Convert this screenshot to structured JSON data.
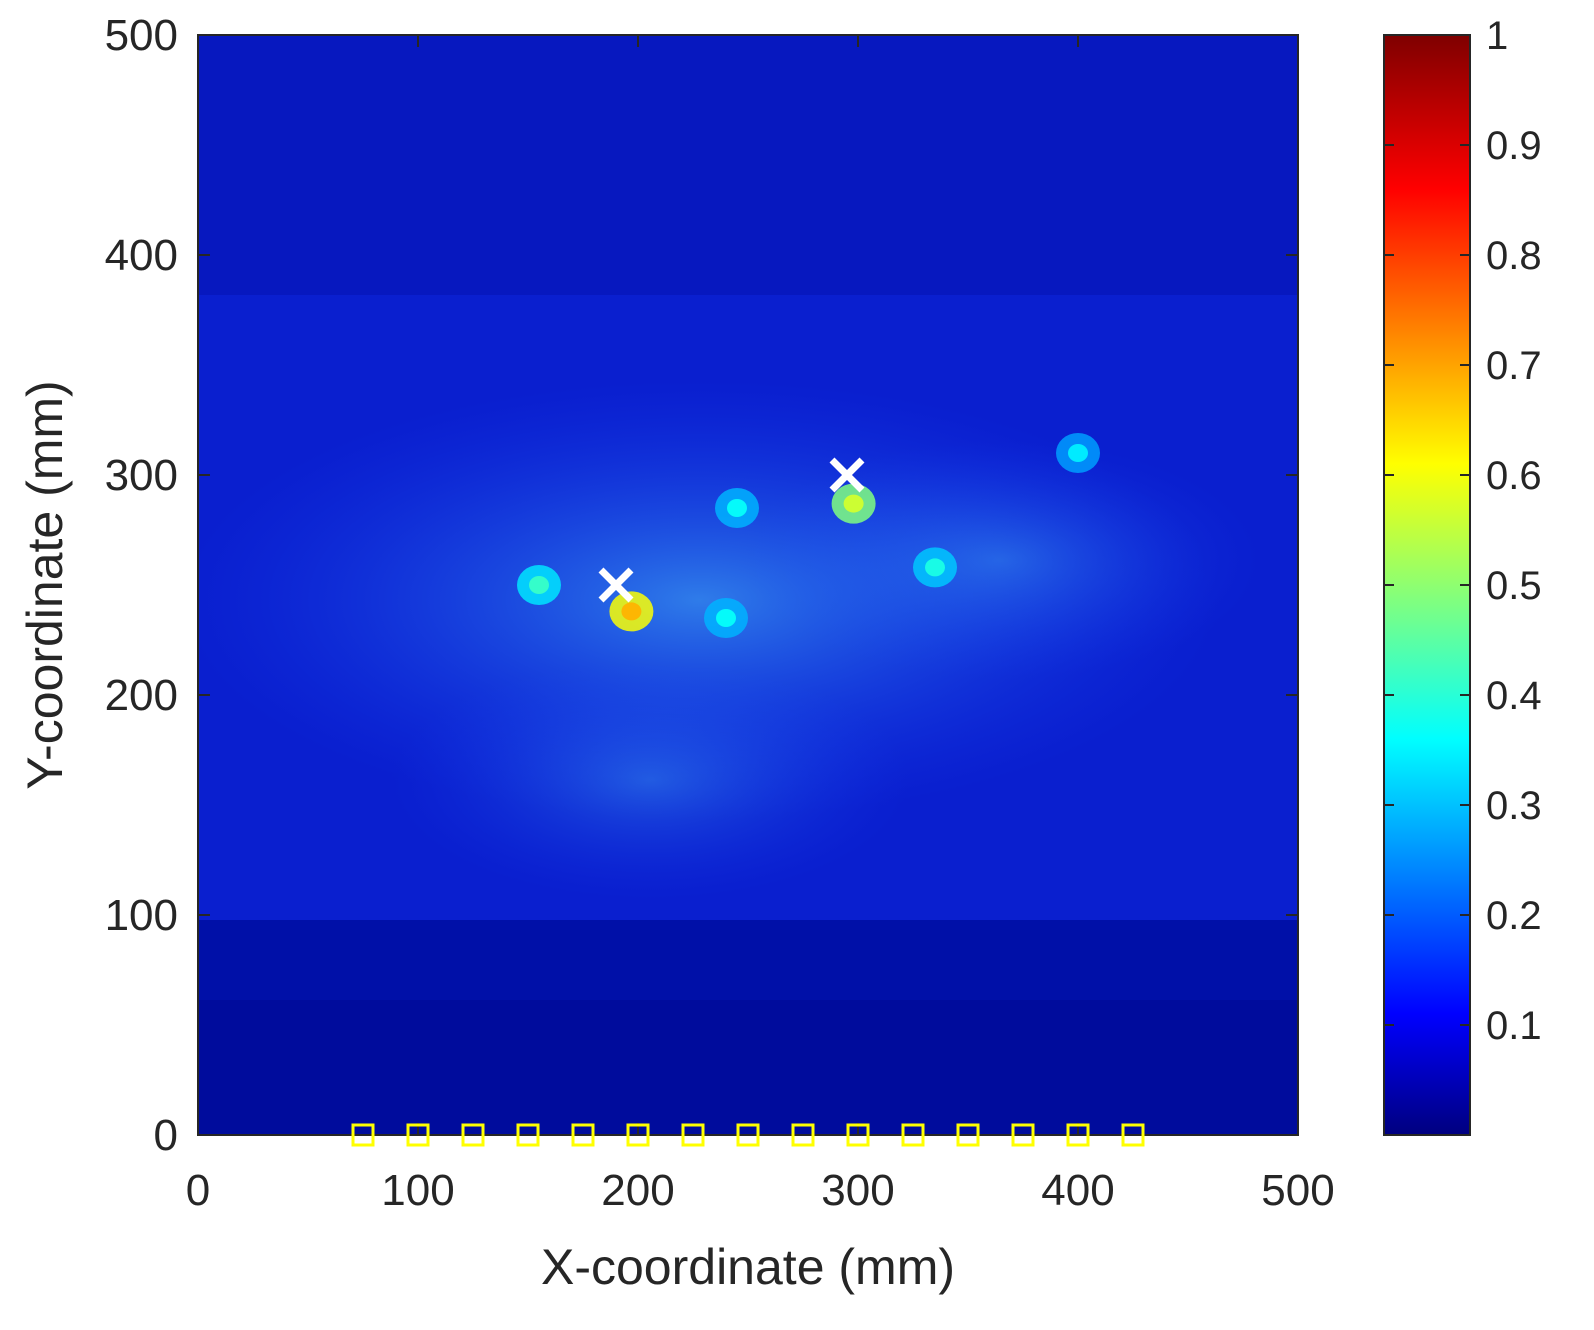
{
  "chart_data": {
    "type": "heatmap",
    "title": "",
    "xlabel": "X-coordinate (mm)",
    "ylabel": "Y-coordinate (mm)",
    "xlim": [
      0,
      500
    ],
    "ylim": [
      0,
      500
    ],
    "x_ticks": [
      "0",
      "100",
      "200",
      "300",
      "400",
      "500"
    ],
    "y_ticks": [
      "0",
      "100",
      "200",
      "300",
      "400",
      "500"
    ],
    "colormap": "jet",
    "colorbar": {
      "range": [
        0,
        1
      ],
      "ticks": [
        "0.1",
        "0.2",
        "0.3",
        "0.4",
        "0.5",
        "0.6",
        "0.7",
        "0.8",
        "0.9",
        "1"
      ]
    },
    "hotspots": [
      {
        "x": 197,
        "y": 238,
        "value": 0.62
      },
      {
        "x": 298,
        "y": 287,
        "value": 0.5
      },
      {
        "x": 155,
        "y": 250,
        "value": 0.35
      },
      {
        "x": 240,
        "y": 235,
        "value": 0.3
      },
      {
        "x": 335,
        "y": 258,
        "value": 0.32
      },
      {
        "x": 400,
        "y": 310,
        "value": 0.28
      },
      {
        "x": 245,
        "y": 285,
        "value": 0.3
      }
    ],
    "target_markers": {
      "symbol": "x",
      "color": "#ffffff",
      "points": [
        {
          "x": 190,
          "y": 250
        },
        {
          "x": 295,
          "y": 300
        }
      ]
    },
    "sensor_markers": {
      "symbol": "square",
      "color": "#ffff00",
      "points": [
        {
          "x": 75,
          "y": 0
        },
        {
          "x": 100,
          "y": 0
        },
        {
          "x": 125,
          "y": 0
        },
        {
          "x": 150,
          "y": 0
        },
        {
          "x": 175,
          "y": 0
        },
        {
          "x": 200,
          "y": 0
        },
        {
          "x": 225,
          "y": 0
        },
        {
          "x": 250,
          "y": 0
        },
        {
          "x": 275,
          "y": 0
        },
        {
          "x": 300,
          "y": 0
        },
        {
          "x": 325,
          "y": 0
        },
        {
          "x": 350,
          "y": 0
        },
        {
          "x": 375,
          "y": 0
        },
        {
          "x": 400,
          "y": 0
        },
        {
          "x": 425,
          "y": 0
        }
      ]
    }
  }
}
